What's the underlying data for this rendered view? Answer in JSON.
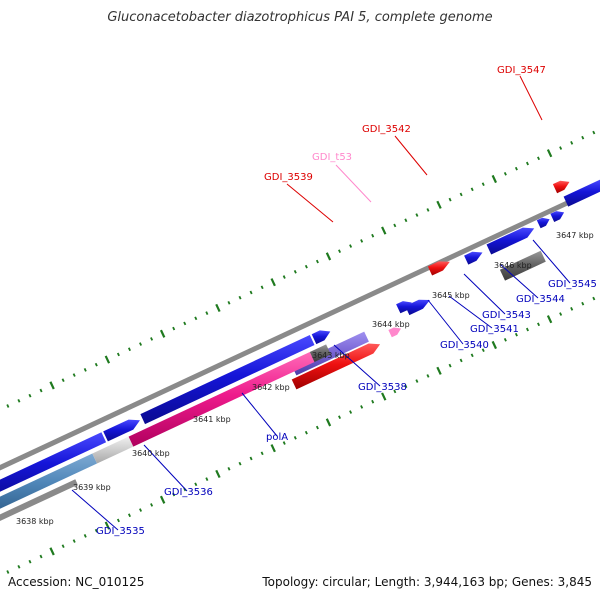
{
  "title": "Gluconacetobacter diazotrophicus PAI 5, complete genome",
  "footer": {
    "accession": "Accession: NC_010125",
    "summary": "Topology: circular; Length: 3,944,163 bp; Genes: 3,845"
  },
  "colors": {
    "backbone": "#8a8a8a",
    "tick": "#1f7a1f",
    "cds": "#1515d8",
    "rna": "#ee1111",
    "trna": "#ff88cc",
    "misc": "#7a66d6",
    "pseudo": "#666666",
    "steel": "#4f86b8",
    "pink": "#ee1b8c",
    "light": "#cccccc"
  },
  "scale_labels": [
    "3638 kbp",
    "3639 kbp",
    "3640 kbp",
    "3641 kbp",
    "3642 kbp",
    "3643 kbp",
    "3644 kbp",
    "3645 kbp",
    "3646 kbp",
    "3647 kbp"
  ],
  "gene_labels": [
    {
      "name": "GDI_3547",
      "color": "red"
    },
    {
      "name": "GDI_3542",
      "color": "red"
    },
    {
      "name": "GDI_t53",
      "color": "pink"
    },
    {
      "name": "GDI_3539",
      "color": "red"
    },
    {
      "name": "GDI_3545",
      "color": "blue"
    },
    {
      "name": "GDI_3544",
      "color": "blue"
    },
    {
      "name": "GDI_3543",
      "color": "blue"
    },
    {
      "name": "GDI_3541",
      "color": "blue"
    },
    {
      "name": "GDI_3540",
      "color": "blue"
    },
    {
      "name": "GDI_3538",
      "color": "blue"
    },
    {
      "name": "polA",
      "color": "blue"
    },
    {
      "name": "GDI_3536",
      "color": "blue"
    },
    {
      "name": "GDI_3535",
      "color": "blue"
    }
  ]
}
